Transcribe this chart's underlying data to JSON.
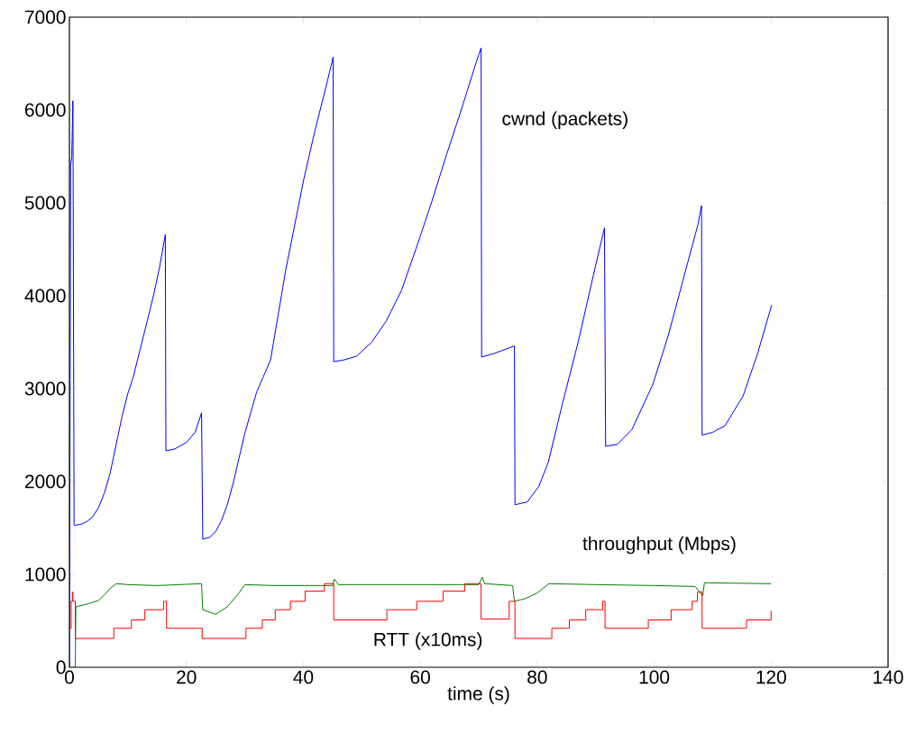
{
  "chart_data": {
    "type": "line",
    "xlabel": "time (s)",
    "xlim": [
      0,
      140
    ],
    "xticks": [
      0,
      20,
      40,
      60,
      80,
      100,
      120,
      140
    ],
    "ylim": [
      0,
      7000
    ],
    "yticks": [
      0,
      1000,
      2000,
      3000,
      4000,
      5000,
      6000,
      7000
    ],
    "grid": false,
    "legend": false,
    "marker": "none",
    "line_style": "solid",
    "series": [
      {
        "name": "cwnd (packets)",
        "color": "#0000ff",
        "x": [
          0,
          0.2,
          0.4,
          0.6,
          0.8,
          1,
          2,
          3,
          4,
          5,
          6,
          7,
          8,
          9,
          10,
          10.9,
          12,
          13,
          14.4,
          15.4,
          16.4,
          16.5,
          18,
          20,
          21.5,
          22.6,
          22.8,
          24,
          25,
          26,
          27,
          28,
          29,
          30,
          31,
          32,
          33.1,
          34.4,
          37,
          40.1,
          42,
          44,
          45.1,
          45.2,
          47,
          49.1,
          51.7,
          54.2,
          56.8,
          59.3,
          61.9,
          64.5,
          67,
          69.6,
          70.4,
          70.5,
          72.7,
          76.1,
          76.2,
          78.3,
          80.3,
          81.9,
          84.4,
          87,
          89.6,
          91.5,
          91.7,
          93.7,
          96.2,
          99.8,
          102.4,
          104.9,
          107.5,
          108.1,
          108.2,
          110,
          112.1,
          115.2,
          117.7,
          120.1
        ],
        "values": [
          0,
          5400,
          5500,
          6100,
          1530,
          1530,
          1540,
          1570,
          1620,
          1720,
          1880,
          2100,
          2400,
          2700,
          2950,
          3120,
          3400,
          3650,
          4010,
          4300,
          4660,
          2330,
          2350,
          2420,
          2530,
          2740,
          1380,
          1400,
          1460,
          1580,
          1750,
          1980,
          2250,
          2520,
          2740,
          2960,
          3120,
          3310,
          4280,
          5260,
          5780,
          6280,
          6570,
          3290,
          3310,
          3350,
          3500,
          3730,
          4060,
          4510,
          5000,
          5520,
          6000,
          6520,
          6670,
          3340,
          3380,
          3460,
          1750,
          1780,
          1950,
          2210,
          2860,
          3500,
          4220,
          4730,
          2380,
          2400,
          2560,
          3050,
          3570,
          4160,
          4770,
          4970,
          2500,
          2530,
          2600,
          2920,
          3380,
          3900
        ]
      },
      {
        "name": "throughput (Mbps)",
        "color": "#008000",
        "x": [
          0.3,
          1,
          1.1,
          3,
          5,
          6,
          7,
          8,
          10,
          15,
          22.6,
          22.8,
          25,
          27,
          29,
          30,
          35,
          45,
          45.3,
          46,
          70,
          70.6,
          71,
          75.8,
          76.1,
          78,
          80,
          82,
          90,
          100,
          107,
          108.3,
          108.6,
          120
        ],
        "values": [
          0,
          0,
          650,
          680,
          720,
          780,
          850,
          900,
          890,
          880,
          900,
          620,
          570,
          650,
          800,
          890,
          880,
          880,
          950,
          890,
          890,
          970,
          900,
          880,
          710,
          740,
          800,
          900,
          890,
          880,
          870,
          770,
          910,
          900
        ]
      },
      {
        "name": "RTT (x10ms)",
        "color": "#ff0000",
        "type": "step",
        "x": [
          0,
          0.3,
          0.5,
          0.6,
          1,
          7.6,
          10.6,
          12.9,
          16.1,
          16.6,
          22.7,
          30.2,
          33,
          35.2,
          37.8,
          40.3,
          43.6,
          45.2,
          54.3,
          59.4,
          63.9,
          67.6,
          70.4,
          75.2,
          76.2,
          82.5,
          85.5,
          88.3,
          91.2,
          91.6,
          99,
          102.9,
          106.5,
          107.4,
          108.2,
          115.8,
          120
        ],
        "values": [
          420,
          710,
          810,
          710,
          310,
          420,
          510,
          620,
          710,
          420,
          310,
          420,
          510,
          620,
          710,
          820,
          900,
          510,
          620,
          710,
          820,
          900,
          520,
          710,
          310,
          420,
          510,
          620,
          710,
          420,
          510,
          620,
          710,
          810,
          420,
          510,
          610
        ]
      }
    ]
  }
}
